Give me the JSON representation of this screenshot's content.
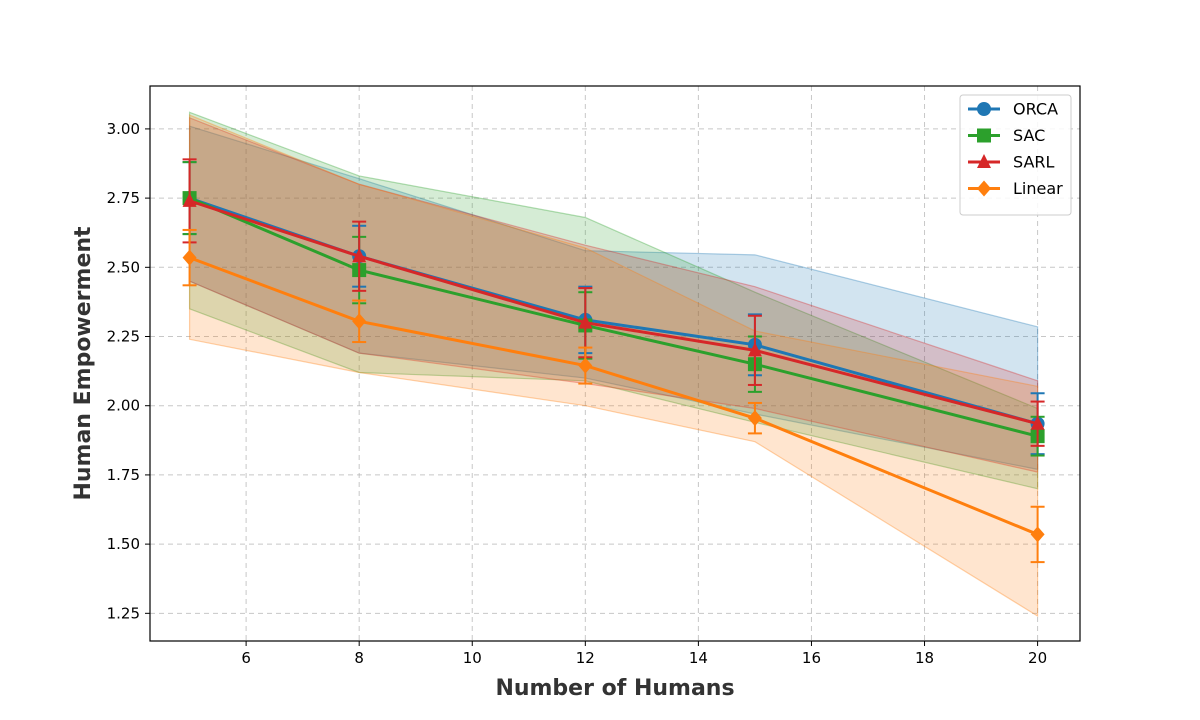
{
  "chart_data": {
    "type": "line",
    "title": "",
    "xlabel": "Number of Humans",
    "ylabel": "Human Empowerment",
    "xlim": [
      4.3,
      20.75
    ],
    "ylim": [
      1.15,
      3.155
    ],
    "xticks": [
      6,
      8,
      10,
      12,
      14,
      16,
      18,
      20
    ],
    "yticks": [
      1.25,
      1.5,
      1.75,
      2.0,
      2.25,
      2.5,
      2.75,
      3.0
    ],
    "xtick_labels": [
      "6",
      "8",
      "10",
      "12",
      "14",
      "16",
      "18",
      "20"
    ],
    "ytick_labels": [
      "1.25",
      "1.50",
      "1.75",
      "2.00",
      "2.25",
      "2.50",
      "2.75",
      "3.00"
    ],
    "grid": true,
    "legend_position": "top-right",
    "x": [
      5,
      8,
      12,
      15,
      20
    ],
    "series": [
      {
        "name": "ORCA",
        "color": "#1f77b4",
        "marker": "circle",
        "values": [
          2.75,
          2.54,
          2.31,
          2.22,
          1.935
        ],
        "err": [
          0.13,
          0.11,
          0.12,
          0.11,
          0.11
        ],
        "band_upper": [
          3.01,
          2.82,
          2.56,
          2.545,
          2.285
        ],
        "band_lower": [
          2.45,
          2.19,
          2.1,
          1.97,
          1.77
        ]
      },
      {
        "name": "SAC",
        "color": "#2ca02c",
        "marker": "square",
        "values": [
          2.75,
          2.49,
          2.29,
          2.15,
          1.89
        ],
        "err": [
          0.13,
          0.12,
          0.12,
          0.1,
          0.07
        ],
        "band_upper": [
          3.06,
          2.83,
          2.68,
          2.41,
          1.99
        ],
        "band_lower": [
          2.35,
          2.12,
          2.09,
          1.94,
          1.7
        ]
      },
      {
        "name": "SARL",
        "color": "#d62728",
        "marker": "triangle",
        "values": [
          2.74,
          2.54,
          2.3,
          2.2,
          1.935
        ],
        "err": [
          0.15,
          0.125,
          0.125,
          0.125,
          0.08
        ],
        "band_upper": [
          3.04,
          2.8,
          2.58,
          2.43,
          2.09
        ],
        "band_lower": [
          2.45,
          2.19,
          2.08,
          1.99,
          1.76
        ]
      },
      {
        "name": "Linear",
        "color": "#ff7f0e",
        "marker": "diamond",
        "values": [
          2.535,
          2.305,
          2.145,
          1.955,
          1.535
        ],
        "err": [
          0.1,
          0.075,
          0.065,
          0.055,
          0.1
        ],
        "band_upper": [
          3.05,
          2.8,
          2.57,
          2.27,
          2.07
        ],
        "band_lower": [
          2.24,
          2.12,
          2.0,
          1.87,
          1.24
        ]
      }
    ]
  }
}
